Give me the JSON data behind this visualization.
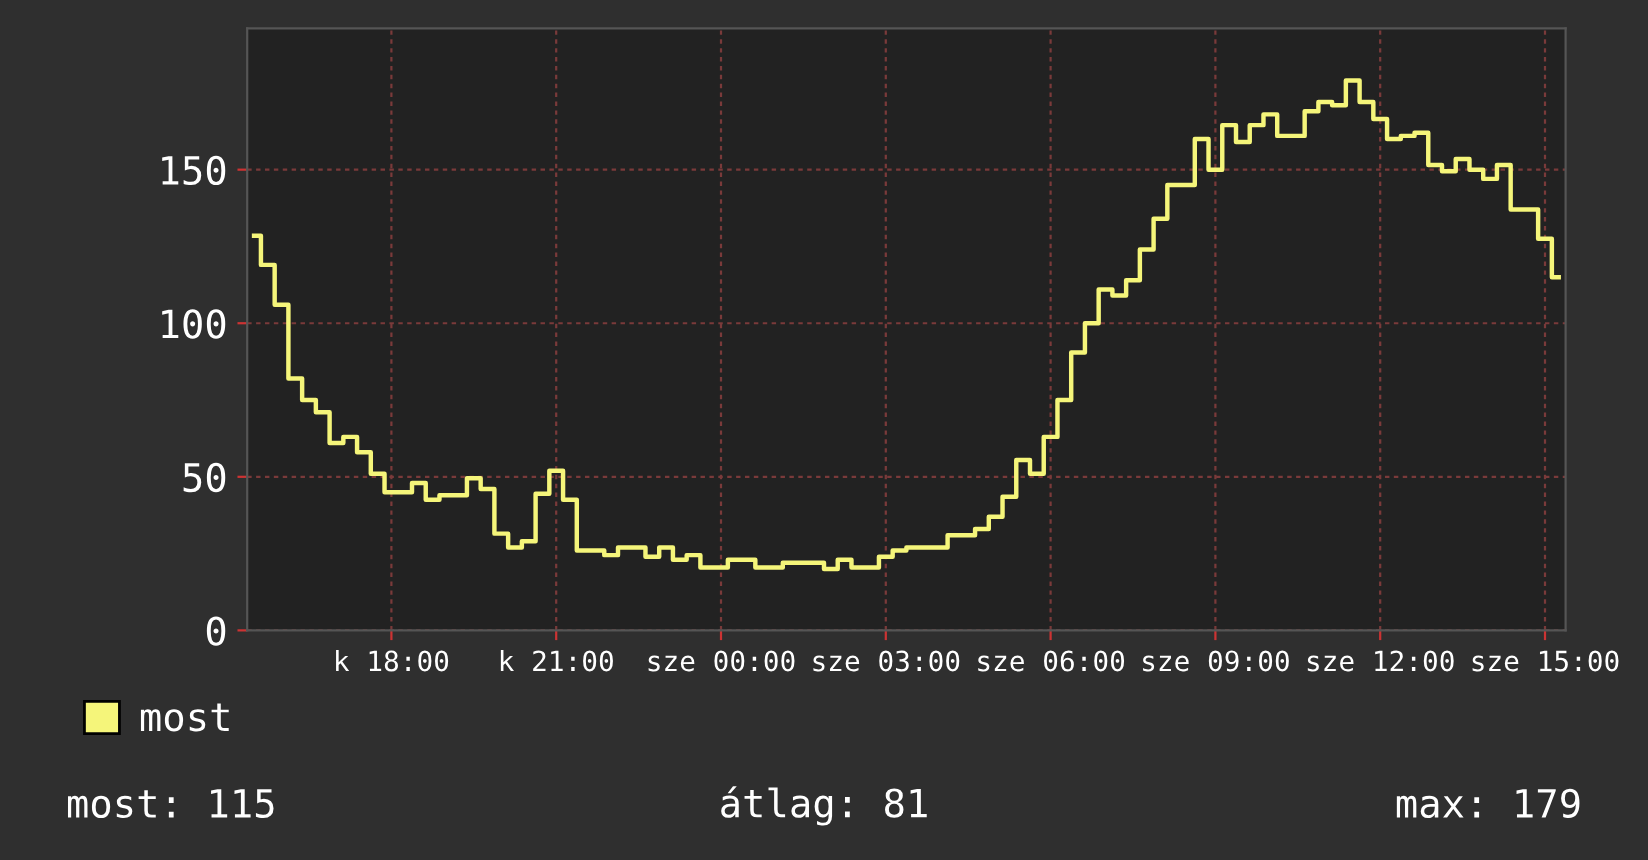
{
  "chart_data": {
    "type": "step",
    "categories": [
      null,
      null,
      null,
      null,
      null,
      null,
      null,
      null,
      null,
      null,
      "k 18:00",
      null,
      null,
      null,
      null,
      null,
      null,
      null,
      null,
      null,
      null,
      null,
      "k 21:00",
      null,
      null,
      null,
      null,
      null,
      null,
      null,
      null,
      null,
      null,
      null,
      "sze 00:00",
      null,
      null,
      null,
      null,
      null,
      null,
      null,
      null,
      null,
      null,
      null,
      "sze 03:00",
      null,
      null,
      null,
      null,
      null,
      null,
      null,
      null,
      null,
      null,
      null,
      "sze 06:00",
      null,
      null,
      null,
      null,
      null,
      null,
      null,
      null,
      null,
      null,
      null,
      "sze 09:00",
      null,
      null,
      null,
      null,
      null,
      null,
      null,
      null,
      null,
      null,
      null,
      "sze 12:00",
      null,
      null,
      null,
      null,
      null,
      null,
      null,
      null,
      null,
      null,
      null,
      "sze 15:00",
      null
    ],
    "series": [
      {
        "name": "most",
        "color": "#f5f57a",
        "values": [
          128.5,
          119,
          106,
          82,
          75,
          71,
          61,
          63,
          58,
          51,
          45,
          45,
          48,
          42.5,
          44,
          44,
          49.5,
          46,
          31.5,
          27,
          29,
          44.5,
          52,
          42.5,
          26,
          26,
          24.5,
          27,
          27,
          24,
          27,
          23,
          24.5,
          20.5,
          20.5,
          23,
          23,
          20.5,
          20.5,
          22,
          22,
          22,
          20,
          23,
          20.5,
          20.5,
          24,
          26,
          27,
          27,
          27,
          31,
          31,
          33,
          37,
          43.5,
          55.5,
          51,
          63,
          75,
          90.5,
          100,
          111,
          109,
          114,
          124,
          134,
          145,
          145,
          160,
          150,
          164.5,
          159,
          164.5,
          168,
          161,
          161,
          169,
          172,
          171,
          179,
          172,
          166.5,
          160,
          161,
          162,
          151.5,
          149.5,
          153.5,
          150,
          147,
          151.5,
          137,
          137,
          127.5,
          115
        ]
      }
    ],
    "ylim": [
      0,
      196
    ],
    "yticks": [
      0,
      50,
      100,
      150
    ],
    "grid": true,
    "legend": "bottom",
    "annotations": [
      "most: 115",
      "átlag: 81",
      "max: 179"
    ]
  }
}
